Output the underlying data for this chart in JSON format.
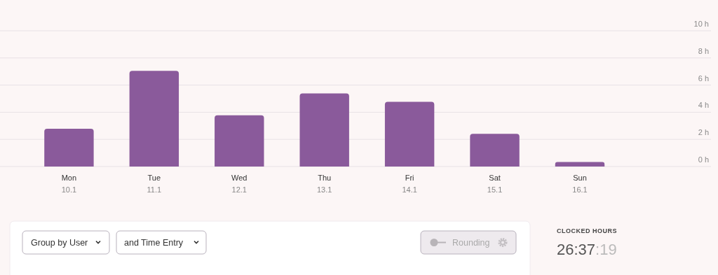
{
  "chart_data": {
    "type": "bar",
    "categories": [
      "Mon\n10.1",
      "Tue\n11.1",
      "Wed\n12.1",
      "Thu\n13.1",
      "Fri\n14.1",
      "Sat\n15.1",
      "Sun\n16.1"
    ],
    "values": [
      2.78,
      7.05,
      3.77,
      5.39,
      4.77,
      2.41,
      0.33
    ],
    "color": "#8a5a9b",
    "ylim": [
      0,
      10
    ],
    "yticks": [
      {
        "value": 0,
        "label": "0 h"
      },
      {
        "value": 2,
        "label": "2 h"
      },
      {
        "value": 4,
        "label": "4 h"
      },
      {
        "value": 6,
        "label": "6 h"
      },
      {
        "value": 8,
        "label": "8 h"
      },
      {
        "value": 10,
        "label": "10 h"
      }
    ],
    "grid": "y",
    "annotations": [
      "Group by User",
      "and Time Entry",
      "Rounding",
      "CLOCKED HOURS",
      "26:37:19"
    ]
  }
}
